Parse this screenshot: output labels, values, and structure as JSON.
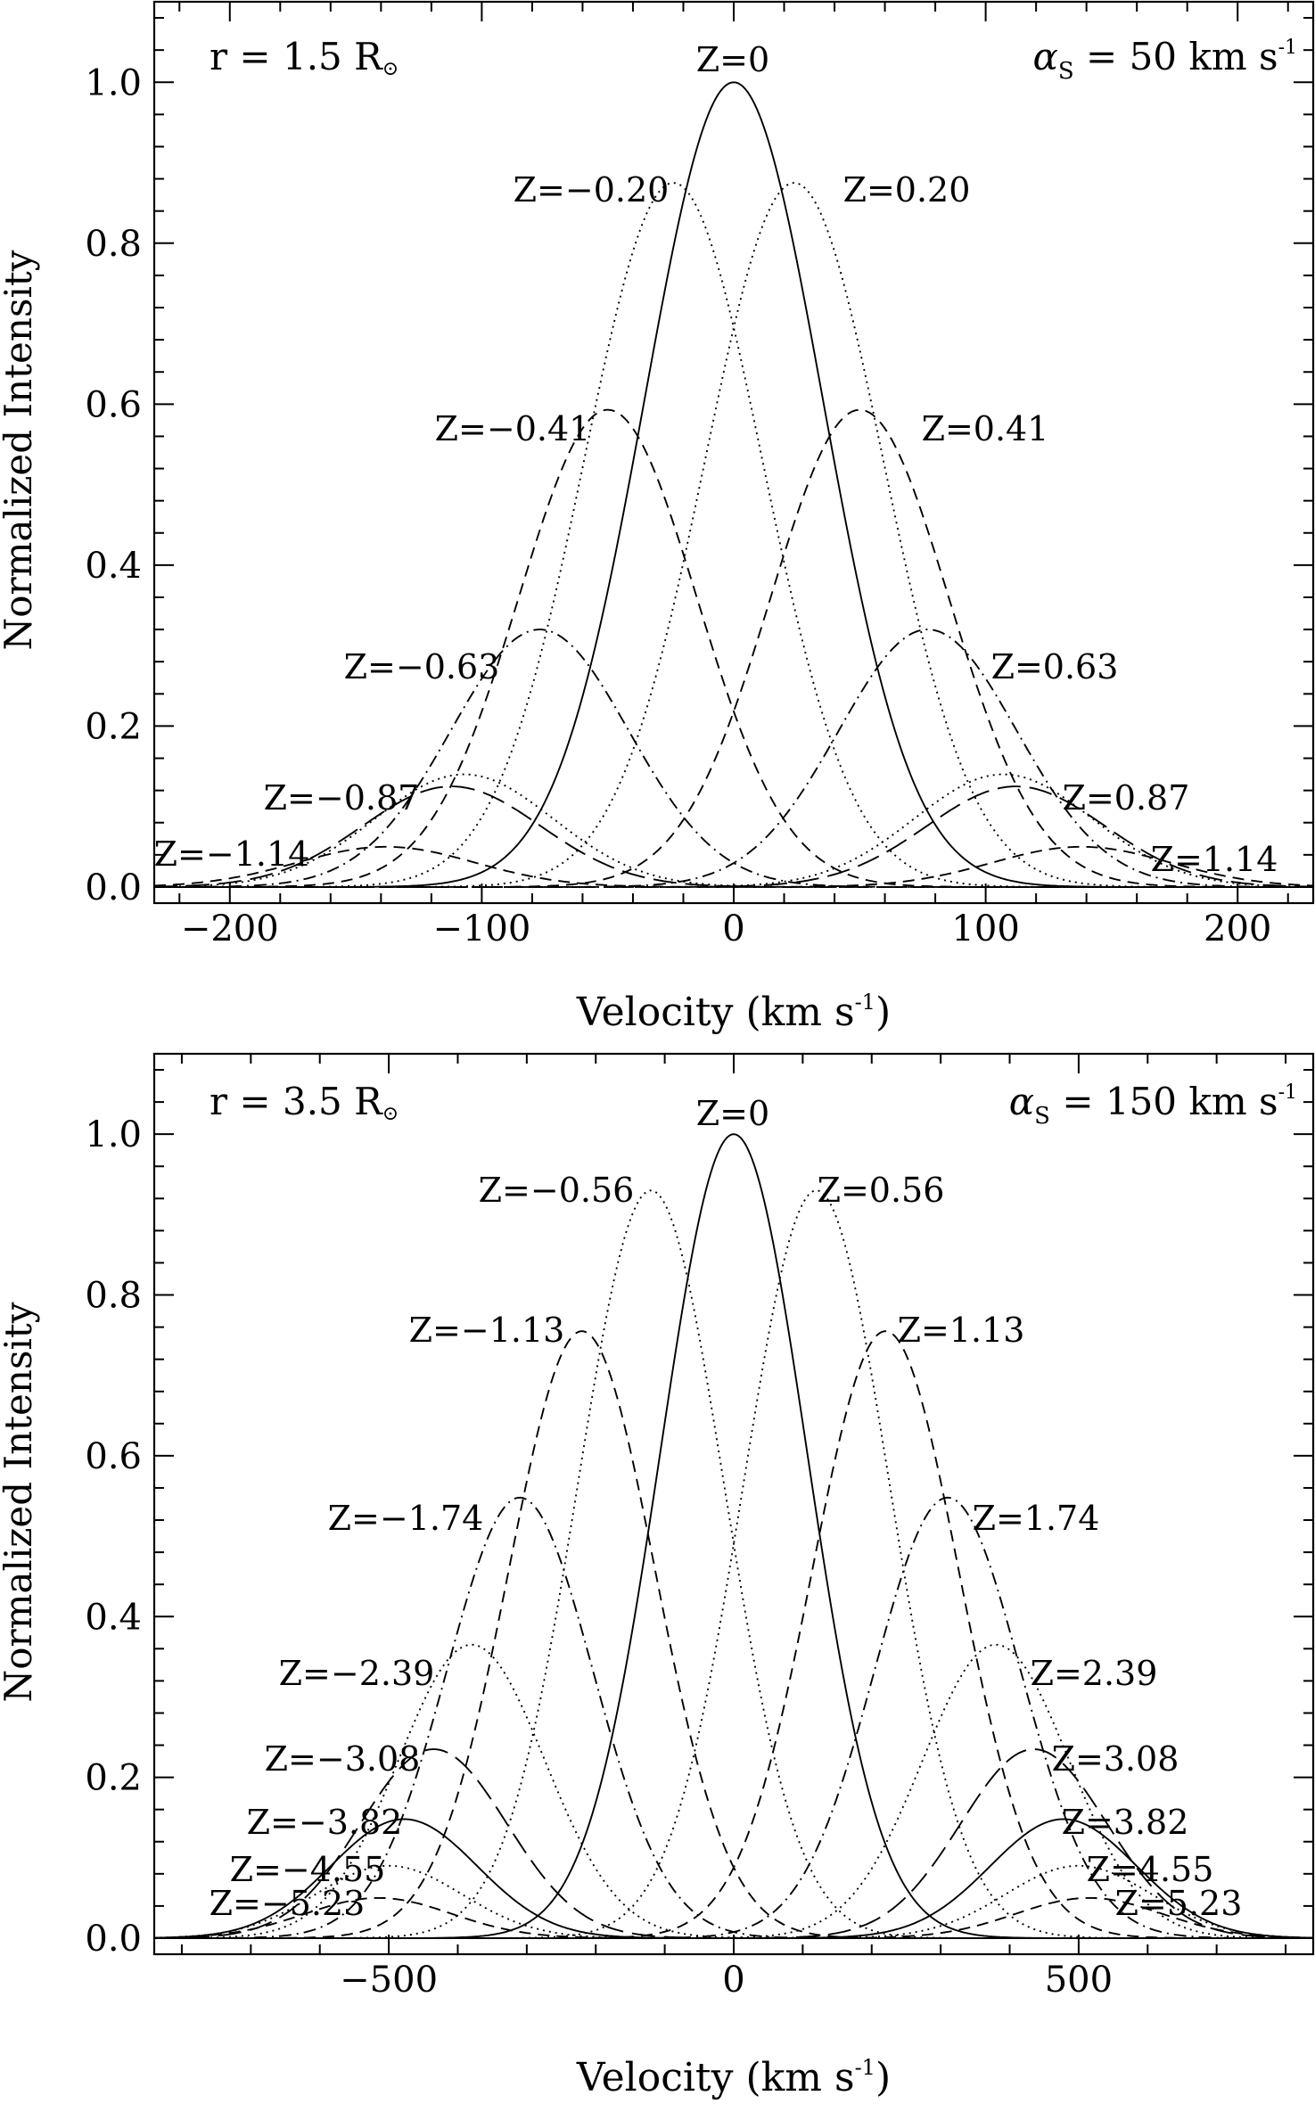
{
  "chart_data": [
    {
      "type": "line",
      "title": "",
      "corner_left": {
        "text": "r = 1.5 R",
        "symbol": "⊙"
      },
      "corner_right": {
        "text": "α",
        "sub": "S",
        "tail": " = 50 km s",
        "sup": "-1"
      },
      "xlabel": {
        "text": "Velocity (km s",
        "sup": "-1",
        "tail": ")"
      },
      "ylabel": "Normalized Intensity",
      "xlim": [
        -230,
        230
      ],
      "ylim": [
        -0.02,
        1.1
      ],
      "xticks": [
        -200,
        -100,
        0,
        100,
        200
      ],
      "xtick_labels": [
        "−200",
        "−100",
        "0",
        "100",
        "200"
      ],
      "yticks": [
        0.0,
        0.2,
        0.4,
        0.6,
        0.8,
        1.0
      ],
      "ytick_labels": [
        "0.0",
        "0.2",
        "0.4",
        "0.6",
        "0.8",
        "1.0"
      ],
      "grid": false,
      "series": [
        {
          "name": "Z=0",
          "center": 0,
          "peak": 1.0,
          "width": 50,
          "style": "solid"
        },
        {
          "name": "Z=−0.20",
          "center": -24,
          "peak": 0.875,
          "width": 50,
          "style": "dotted"
        },
        {
          "name": "Z=0.20",
          "center": 24,
          "peak": 0.875,
          "width": 50,
          "style": "dotted"
        },
        {
          "name": "Z=−0.41",
          "center": -50,
          "peak": 0.593,
          "width": 50,
          "style": "dashed"
        },
        {
          "name": "Z=0.41",
          "center": 50,
          "peak": 0.593,
          "width": 50,
          "style": "dashed"
        },
        {
          "name": "Z=−0.63",
          "center": -77,
          "peak": 0.32,
          "width": 50,
          "style": "dashdot"
        },
        {
          "name": "Z=0.63",
          "center": 77,
          "peak": 0.32,
          "width": 50,
          "style": "dashdot"
        },
        {
          "name": "Z=−0.87",
          "center": -107,
          "peak": 0.14,
          "width": 50,
          "style": "dotted"
        },
        {
          "name": "Z=0.87",
          "center": 107,
          "peak": 0.14,
          "width": 50,
          "style": "dotted"
        },
        {
          "name": "",
          "center": -112,
          "peak": 0.125,
          "width": 50,
          "style": "longdash"
        },
        {
          "name": "",
          "center": 112,
          "peak": 0.125,
          "width": 50,
          "style": "longdash"
        },
        {
          "name": "Z=−1.14",
          "center": -138,
          "peak": 0.05,
          "width": 50,
          "style": "dashed"
        },
        {
          "name": "Z=1.14",
          "center": 138,
          "peak": 0.05,
          "width": 50,
          "style": "dashed"
        }
      ]
    },
    {
      "type": "line",
      "title": "",
      "corner_left": {
        "text": "r = 3.5 R",
        "symbol": "⊙"
      },
      "corner_right": {
        "text": "α",
        "sub": "S",
        "tail": " = 150 km s",
        "sup": "-1"
      },
      "xlabel": {
        "text": "Velocity (km s",
        "sup": "-1",
        "tail": ")"
      },
      "ylabel": "Normalized Intensity",
      "xlim": [
        -840,
        840
      ],
      "ylim": [
        -0.02,
        1.1
      ],
      "xticks": [
        -500,
        0,
        500
      ],
      "xtick_labels": [
        "−500",
        "0",
        "500"
      ],
      "yticks": [
        0.0,
        0.2,
        0.4,
        0.6,
        0.8,
        1.0
      ],
      "ytick_labels": [
        "0.0",
        "0.2",
        "0.4",
        "0.6",
        "0.8",
        "1.0"
      ],
      "grid": false,
      "series": [
        {
          "name": "Z=0",
          "center": 0,
          "peak": 1.0,
          "width": 150,
          "style": "solid"
        },
        {
          "name": "Z=−0.56",
          "center": -120,
          "peak": 0.93,
          "width": 150,
          "style": "dotted"
        },
        {
          "name": "Z=0.56",
          "center": 120,
          "peak": 0.93,
          "width": 150,
          "style": "dotted"
        },
        {
          "name": "Z=−1.13",
          "center": -220,
          "peak": 0.755,
          "width": 150,
          "style": "dashed"
        },
        {
          "name": "Z=1.13",
          "center": 220,
          "peak": 0.755,
          "width": 150,
          "style": "dashed"
        },
        {
          "name": "Z=−1.74",
          "center": -310,
          "peak": 0.548,
          "width": 150,
          "style": "dashdot"
        },
        {
          "name": "Z=1.74",
          "center": 310,
          "peak": 0.548,
          "width": 150,
          "style": "dashdot"
        },
        {
          "name": "Z=−2.39",
          "center": -380,
          "peak": 0.365,
          "width": 150,
          "style": "dotted"
        },
        {
          "name": "Z=2.39",
          "center": 380,
          "peak": 0.365,
          "width": 150,
          "style": "dotted"
        },
        {
          "name": "Z=−3.08",
          "center": -435,
          "peak": 0.235,
          "width": 150,
          "style": "longdash"
        },
        {
          "name": "Z=3.08",
          "center": 435,
          "peak": 0.235,
          "width": 150,
          "style": "longdash"
        },
        {
          "name": "Z=−3.82",
          "center": -478,
          "peak": 0.148,
          "width": 150,
          "style": "solid"
        },
        {
          "name": "Z=3.82",
          "center": 478,
          "peak": 0.148,
          "width": 150,
          "style": "solid"
        },
        {
          "name": "Z=−4.55",
          "center": -500,
          "peak": 0.09,
          "width": 150,
          "style": "dotted"
        },
        {
          "name": "Z=4.55",
          "center": 500,
          "peak": 0.09,
          "width": 150,
          "style": "dotted"
        },
        {
          "name": "Z=−5.23",
          "center": -515,
          "peak": 0.05,
          "width": 150,
          "style": "dashed"
        },
        {
          "name": "Z=5.23",
          "center": 515,
          "peak": 0.05,
          "width": 150,
          "style": "dashed"
        }
      ]
    }
  ]
}
